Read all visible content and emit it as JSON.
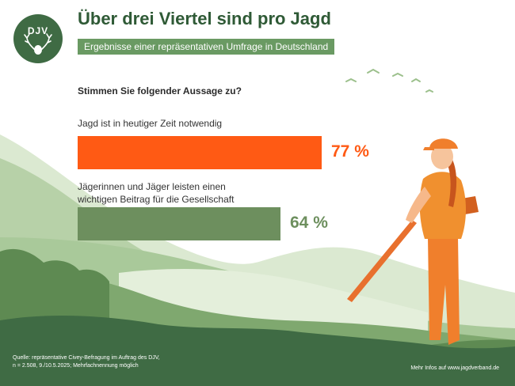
{
  "logo": {
    "text": "DJV"
  },
  "header": {
    "title": "Über drei Viertel sind pro Jagd",
    "subtitle": "Ergebnisse einer repräsentativen Umfrage in Deutschland"
  },
  "question": "Stimmen Sie folgender Aussage zu?",
  "chart_data": {
    "type": "bar",
    "orientation": "horizontal",
    "categories": [
      "Jagd ist in heutiger Zeit notwendig",
      "Jägerinnen und Jäger leisten einen wichtigen Beitrag für die Gesellschaft"
    ],
    "category_lines": [
      [
        "Jagd ist in heutiger Zeit notwendig"
      ],
      [
        "Jägerinnen und Jäger leisten einen",
        "wichtigen Beitrag für die Gesellschaft"
      ]
    ],
    "values": [
      77,
      64
    ],
    "value_labels": [
      "77 %",
      "64 %"
    ],
    "colors": [
      "#ff5a14",
      "#6d8f5e"
    ],
    "xlim": [
      0,
      100
    ]
  },
  "footer": {
    "source_line1": "Quelle: repräsentative Civey-Befragung im Auftrag des DJV,",
    "source_line2": "n = 2.508, 9./10.5.2025; Mehrfachnennung möglich",
    "more_info": "Mehr Infos auf www.jagdverband.de"
  },
  "colors": {
    "dark_green": "#3f6b44",
    "mid_green": "#6a9a63",
    "light_green": "#c9dfbd",
    "orange": "#ff5a14"
  }
}
